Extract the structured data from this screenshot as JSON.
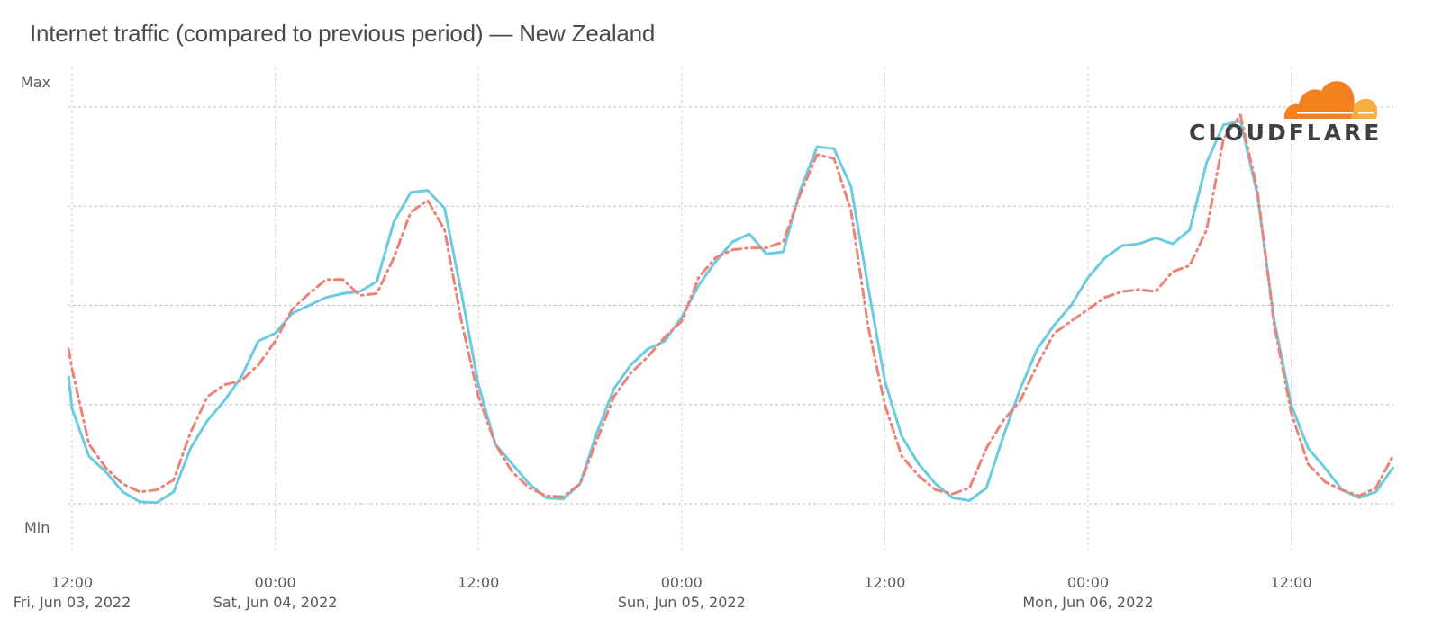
{
  "chart_data": {
    "type": "line",
    "title": "Internet traffic (compared to previous period) — New Zealand",
    "y_tick_labels": [
      "Max",
      "Min"
    ],
    "x_tick_labels": [
      {
        "time": "12:00",
        "date": "Fri, Jun 03, 2022"
      },
      {
        "time": "00:00",
        "date": "Sat, Jun 04, 2022"
      },
      {
        "time": "12:00",
        "date": ""
      },
      {
        "time": "00:00",
        "date": "Sun, Jun 05, 2022"
      },
      {
        "time": "12:00",
        "date": ""
      },
      {
        "time": "00:00",
        "date": "Mon, Jun 06, 2022"
      },
      {
        "time": "12:00",
        "date": ""
      }
    ],
    "x_unit": "hours since Fri, Jun 03, 2022 12:00",
    "xlim": [
      0,
      78.5
    ],
    "ylim": [
      0,
      1
    ],
    "grid": true,
    "series": [
      {
        "style": "solid",
        "color": "#6ccbe0",
        "points": [
          [
            -0.2,
            0.32
          ],
          [
            0,
            0.24
          ],
          [
            1,
            0.12
          ],
          [
            2,
            0.08
          ],
          [
            3,
            0.03
          ],
          [
            4,
            0.005
          ],
          [
            5,
            0.003
          ],
          [
            6,
            0.03
          ],
          [
            7,
            0.14
          ],
          [
            8,
            0.21
          ],
          [
            9,
            0.26
          ],
          [
            10,
            0.32
          ],
          [
            11,
            0.41
          ],
          [
            12,
            0.43
          ],
          [
            13,
            0.48
          ],
          [
            14,
            0.5
          ],
          [
            15,
            0.52
          ],
          [
            16,
            0.53
          ],
          [
            17,
            0.535
          ],
          [
            18,
            0.56
          ],
          [
            19,
            0.71
          ],
          [
            20,
            0.785
          ],
          [
            21,
            0.79
          ],
          [
            22,
            0.745
          ],
          [
            23,
            0.53
          ],
          [
            24,
            0.3
          ],
          [
            25,
            0.15
          ],
          [
            26,
            0.1
          ],
          [
            27,
            0.05
          ],
          [
            28,
            0.015
          ],
          [
            29,
            0.012
          ],
          [
            30,
            0.05
          ],
          [
            31,
            0.18
          ],
          [
            32,
            0.29
          ],
          [
            33,
            0.35
          ],
          [
            34,
            0.39
          ],
          [
            35,
            0.41
          ],
          [
            36,
            0.47
          ],
          [
            37,
            0.55
          ],
          [
            38,
            0.61
          ],
          [
            39,
            0.66
          ],
          [
            40,
            0.68
          ],
          [
            41,
            0.63
          ],
          [
            42,
            0.635
          ],
          [
            43,
            0.79
          ],
          [
            44,
            0.9
          ],
          [
            45,
            0.895
          ],
          [
            46,
            0.8
          ],
          [
            47,
            0.55
          ],
          [
            48,
            0.31
          ],
          [
            49,
            0.17
          ],
          [
            50,
            0.1
          ],
          [
            51,
            0.05
          ],
          [
            52,
            0.015
          ],
          [
            53,
            0.008
          ],
          [
            54,
            0.04
          ],
          [
            55,
            0.17
          ],
          [
            56,
            0.29
          ],
          [
            57,
            0.39
          ],
          [
            58,
            0.45
          ],
          [
            59,
            0.5
          ],
          [
            60,
            0.57
          ],
          [
            61,
            0.62
          ],
          [
            62,
            0.65
          ],
          [
            63,
            0.655
          ],
          [
            64,
            0.67
          ],
          [
            65,
            0.655
          ],
          [
            66,
            0.69
          ],
          [
            67,
            0.86
          ],
          [
            68,
            0.955
          ],
          [
            69,
            0.965
          ],
          [
            70,
            0.78
          ],
          [
            71,
            0.46
          ],
          [
            72,
            0.25
          ],
          [
            73,
            0.14
          ],
          [
            74,
            0.09
          ],
          [
            75,
            0.035
          ],
          [
            76,
            0.015
          ],
          [
            77,
            0.03
          ],
          [
            78,
            0.09
          ]
        ]
      },
      {
        "style": "dash-dot",
        "color": "#eb8478",
        "points": [
          [
            -0.2,
            0.39
          ],
          [
            0,
            0.34
          ],
          [
            1,
            0.15
          ],
          [
            2,
            0.09
          ],
          [
            3,
            0.05
          ],
          [
            4,
            0.03
          ],
          [
            5,
            0.035
          ],
          [
            6,
            0.06
          ],
          [
            7,
            0.18
          ],
          [
            8,
            0.27
          ],
          [
            9,
            0.3
          ],
          [
            10,
            0.31
          ],
          [
            11,
            0.35
          ],
          [
            12,
            0.41
          ],
          [
            13,
            0.49
          ],
          [
            14,
            0.53
          ],
          [
            15,
            0.565
          ],
          [
            16,
            0.565
          ],
          [
            17,
            0.525
          ],
          [
            18,
            0.53
          ],
          [
            19,
            0.62
          ],
          [
            20,
            0.735
          ],
          [
            21,
            0.765
          ],
          [
            22,
            0.69
          ],
          [
            23,
            0.46
          ],
          [
            24,
            0.27
          ],
          [
            25,
            0.15
          ],
          [
            26,
            0.08
          ],
          [
            27,
            0.04
          ],
          [
            28,
            0.02
          ],
          [
            29,
            0.018
          ],
          [
            30,
            0.05
          ],
          [
            31,
            0.16
          ],
          [
            32,
            0.27
          ],
          [
            33,
            0.33
          ],
          [
            34,
            0.37
          ],
          [
            35,
            0.42
          ],
          [
            36,
            0.46
          ],
          [
            37,
            0.57
          ],
          [
            38,
            0.62
          ],
          [
            39,
            0.64
          ],
          [
            40,
            0.645
          ],
          [
            41,
            0.645
          ],
          [
            42,
            0.66
          ],
          [
            43,
            0.78
          ],
          [
            44,
            0.88
          ],
          [
            45,
            0.87
          ],
          [
            46,
            0.74
          ],
          [
            47,
            0.45
          ],
          [
            48,
            0.25
          ],
          [
            49,
            0.12
          ],
          [
            50,
            0.07
          ],
          [
            51,
            0.035
          ],
          [
            52,
            0.025
          ],
          [
            53,
            0.04
          ],
          [
            54,
            0.14
          ],
          [
            55,
            0.21
          ],
          [
            56,
            0.26
          ],
          [
            57,
            0.35
          ],
          [
            58,
            0.43
          ],
          [
            59,
            0.46
          ],
          [
            60,
            0.49
          ],
          [
            61,
            0.52
          ],
          [
            62,
            0.535
          ],
          [
            63,
            0.54
          ],
          [
            64,
            0.535
          ],
          [
            65,
            0.585
          ],
          [
            66,
            0.6
          ],
          [
            67,
            0.69
          ],
          [
            68,
            0.92
          ],
          [
            69,
            0.98
          ],
          [
            70,
            0.79
          ],
          [
            71,
            0.45
          ],
          [
            72,
            0.23
          ],
          [
            73,
            0.1
          ],
          [
            74,
            0.055
          ],
          [
            75,
            0.035
          ],
          [
            76,
            0.02
          ],
          [
            77,
            0.04
          ],
          [
            78,
            0.12
          ]
        ]
      }
    ]
  },
  "logo": {
    "text": "CLOUDFLARE",
    "cloud_color_main": "#f48120",
    "cloud_color_light": "#faae40",
    "text_color": "#404041"
  },
  "colors": {
    "gridline": "#bdbdbd",
    "axis_text": "#5a5a5a",
    "title_text": "#4a4a4a"
  }
}
